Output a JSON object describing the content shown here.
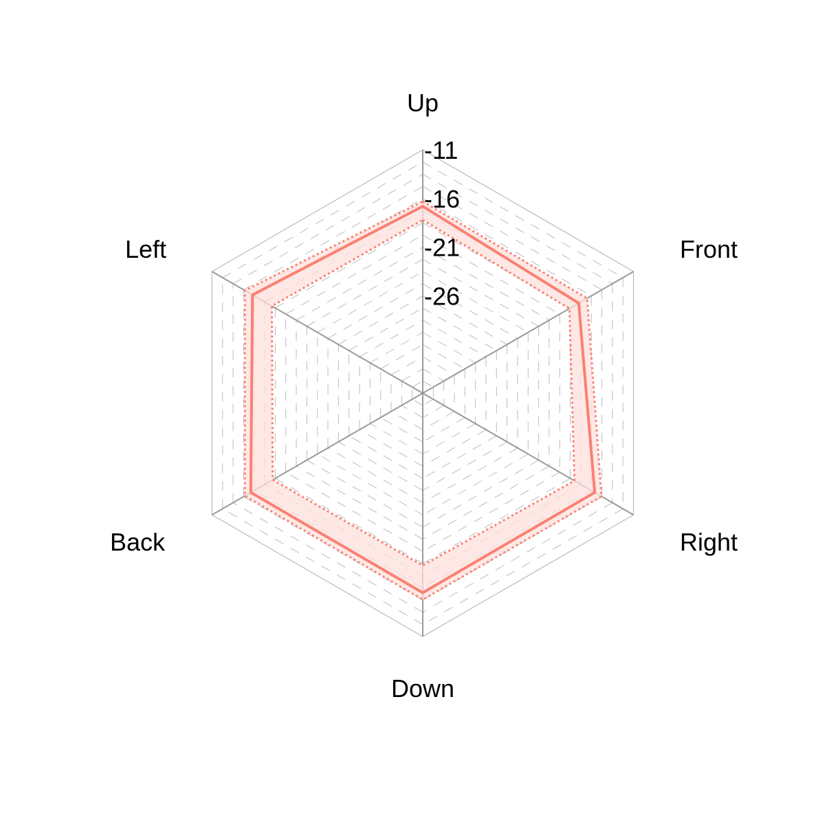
{
  "chart_data": {
    "type": "radar",
    "axes": [
      "Up",
      "Front",
      "Right",
      "Down",
      "Back",
      "Left"
    ],
    "tick_labels": [
      "-11",
      "-16",
      "-21",
      "-26"
    ],
    "r_range": [
      -36,
      -11
    ],
    "ticks": [
      -11,
      -16,
      -21,
      -26
    ],
    "grid": true,
    "series": [
      {
        "style": "solid",
        "values": [
          -16.8,
          -17.5,
          -15.6,
          -15.5,
          -15.6,
          -15.8
        ]
      },
      {
        "style": "dotted-upper",
        "values": [
          -16.3,
          -16.5,
          -14.8,
          -14.8,
          -14.9,
          -14.9
        ]
      },
      {
        "style": "dotted-lower",
        "values": [
          -18.2,
          -18.6,
          -18.0,
          -18.3,
          -18.2,
          -18.1
        ]
      }
    ],
    "colors": {
      "series": "#fa8072",
      "band": "#fde0dc",
      "axis": "#999999",
      "grid": "#bbbbbb"
    }
  }
}
